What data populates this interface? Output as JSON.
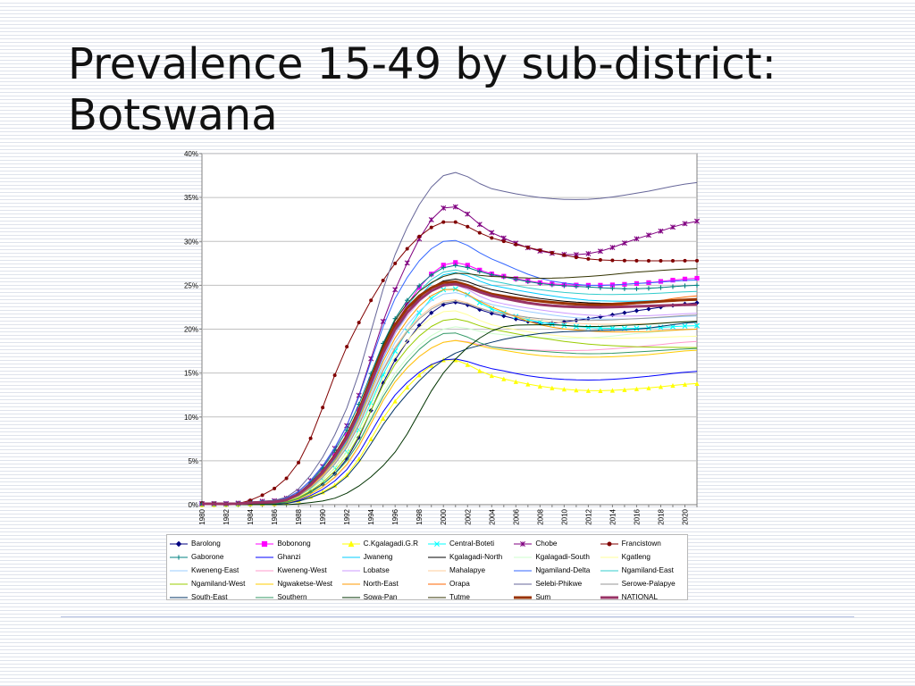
{
  "slide": {
    "title_line1": "Prevalence 15-49 by sub-district:",
    "title_line2": "Botswana"
  },
  "chart_data": {
    "type": "line",
    "ylim": [
      0,
      0.4
    ],
    "y_ticks": [
      "0%",
      "5%",
      "10%",
      "15%",
      "20%",
      "25%",
      "30%",
      "35%",
      "40%"
    ],
    "x_tick_labels": [
      "1980",
      "1982",
      "1984",
      "1986",
      "1988",
      "1990",
      "1992",
      "1994",
      "1996",
      "1998",
      "2000",
      "2002",
      "2004",
      "2006",
      "2008",
      "2010",
      "2012",
      "2014",
      "2016",
      "2018",
      "2020"
    ],
    "x_range": [
      1980,
      2021
    ],
    "grid": "y-major",
    "legend_position": "bottom",
    "keyframe_years": [
      1980,
      1984,
      1988,
      1992,
      1996,
      2000,
      2004,
      2008,
      2012,
      2016,
      2021
    ],
    "series": [
      {
        "name": "Barolong",
        "color": "#000080",
        "marker": "diamond",
        "width": 1,
        "values": [
          0.001,
          0.002,
          0.008,
          0.052,
          0.165,
          0.228,
          0.218,
          0.207,
          0.212,
          0.221,
          0.23
        ]
      },
      {
        "name": "Bobonong",
        "color": "#ff00ff",
        "marker": "square",
        "width": 1,
        "values": [
          0.001,
          0.002,
          0.012,
          0.08,
          0.205,
          0.273,
          0.263,
          0.253,
          0.25,
          0.252,
          0.258
        ]
      },
      {
        "name": "C.Kgalagadi.G.R",
        "color": "#ffff00",
        "marker": "triangle",
        "width": 1,
        "values": [
          0.0,
          0.001,
          0.005,
          0.034,
          0.118,
          0.165,
          0.147,
          0.135,
          0.13,
          0.132,
          0.138
        ]
      },
      {
        "name": "Central-Boteti",
        "color": "#00ffff",
        "marker": "x",
        "width": 1,
        "values": [
          0.001,
          0.002,
          0.01,
          0.06,
          0.175,
          0.245,
          0.223,
          0.208,
          0.202,
          0.201,
          0.204
        ]
      },
      {
        "name": "Chobe",
        "color": "#800080",
        "marker": "star",
        "width": 1,
        "values": [
          0.001,
          0.003,
          0.015,
          0.09,
          0.245,
          0.338,
          0.31,
          0.289,
          0.286,
          0.303,
          0.323
        ]
      },
      {
        "name": "Francistown",
        "color": "#800000",
        "marker": "circle",
        "width": 1,
        "values": [
          0.002,
          0.005,
          0.048,
          0.18,
          0.275,
          0.322,
          0.304,
          0.29,
          0.28,
          0.278,
          0.278
        ]
      },
      {
        "name": "Gaborone",
        "color": "#008080",
        "marker": "plus",
        "width": 1,
        "values": [
          0.001,
          0.002,
          0.013,
          0.085,
          0.212,
          0.27,
          0.262,
          0.252,
          0.248,
          0.246,
          0.25
        ]
      },
      {
        "name": "Ghanzi",
        "color": "#0000ff",
        "marker": "none",
        "width": 1,
        "values": [
          0.0,
          0.001,
          0.005,
          0.04,
          0.125,
          0.165,
          0.155,
          0.145,
          0.142,
          0.145,
          0.152
        ]
      },
      {
        "name": "Jwaneng",
        "color": "#00ccff",
        "marker": "none",
        "width": 1,
        "values": [
          0.001,
          0.002,
          0.011,
          0.072,
          0.195,
          0.262,
          0.25,
          0.24,
          0.233,
          0.232,
          0.234
        ]
      },
      {
        "name": "Kgalagadi-North",
        "color": "#000000",
        "marker": "none",
        "width": 1,
        "values": [
          0.001,
          0.002,
          0.012,
          0.075,
          0.2,
          0.255,
          0.245,
          0.235,
          0.23,
          0.23,
          0.233
        ]
      },
      {
        "name": "Kgalagadi-South",
        "color": "#ccffcc",
        "marker": "none",
        "width": 1,
        "values": [
          0.0,
          0.001,
          0.007,
          0.05,
          0.15,
          0.2,
          0.195,
          0.19,
          0.19,
          0.195,
          0.2
        ]
      },
      {
        "name": "Kgatleng",
        "color": "#ffff99",
        "marker": "none",
        "width": 1,
        "values": [
          0.001,
          0.002,
          0.009,
          0.06,
          0.168,
          0.22,
          0.205,
          0.195,
          0.19,
          0.19,
          0.192
        ]
      },
      {
        "name": "Kweneng-East",
        "color": "#99ccff",
        "marker": "none",
        "width": 1,
        "values": [
          0.001,
          0.002,
          0.01,
          0.068,
          0.185,
          0.24,
          0.228,
          0.218,
          0.212,
          0.212,
          0.215
        ]
      },
      {
        "name": "Kweneng-West",
        "color": "#ff99cc",
        "marker": "none",
        "width": 1,
        "values": [
          0.0,
          0.001,
          0.006,
          0.045,
          0.14,
          0.185,
          0.18,
          0.176,
          0.176,
          0.18,
          0.186
        ]
      },
      {
        "name": "Lobatse",
        "color": "#cc99ff",
        "marker": "none",
        "width": 1,
        "values": [
          0.001,
          0.002,
          0.011,
          0.074,
          0.195,
          0.25,
          0.232,
          0.222,
          0.216,
          0.215,
          0.218
        ]
      },
      {
        "name": "Mahalapye",
        "color": "#ffcc99",
        "marker": "none",
        "width": 1,
        "values": [
          0.001,
          0.002,
          0.01,
          0.066,
          0.18,
          0.232,
          0.22,
          0.21,
          0.206,
          0.206,
          0.209
        ]
      },
      {
        "name": "Ngamiland-Delta",
        "color": "#3366ff",
        "marker": "none",
        "width": 1,
        "values": [
          0.001,
          0.003,
          0.015,
          0.09,
          0.235,
          0.3,
          0.28,
          0.258,
          0.25,
          0.252,
          0.256
        ]
      },
      {
        "name": "Ngamiland-East",
        "color": "#33cccc",
        "marker": "none",
        "width": 1,
        "values": [
          0.001,
          0.002,
          0.012,
          0.078,
          0.205,
          0.265,
          0.255,
          0.245,
          0.24,
          0.24,
          0.243
        ]
      },
      {
        "name": "Ngamiland-West",
        "color": "#99cc00",
        "marker": "none",
        "width": 1,
        "values": [
          0.0,
          0.001,
          0.008,
          0.055,
          0.16,
          0.21,
          0.2,
          0.19,
          0.183,
          0.18,
          0.179
        ]
      },
      {
        "name": "Ngwaketse-West",
        "color": "#ffcc00",
        "marker": "none",
        "width": 1,
        "values": [
          0.0,
          0.001,
          0.006,
          0.046,
          0.14,
          0.185,
          0.178,
          0.17,
          0.168,
          0.17,
          0.176
        ]
      },
      {
        "name": "North-East",
        "color": "#ff9900",
        "marker": "none",
        "width": 1,
        "values": [
          0.001,
          0.002,
          0.011,
          0.07,
          0.19,
          0.245,
          0.225,
          0.205,
          0.198,
          0.197,
          0.2
        ]
      },
      {
        "name": "Orapa",
        "color": "#ff6600",
        "marker": "none",
        "width": 1,
        "values": [
          0.001,
          0.002,
          0.011,
          0.075,
          0.198,
          0.25,
          0.238,
          0.228,
          0.226,
          0.229,
          0.238
        ]
      },
      {
        "name": "Selebi-Phikwe",
        "color": "#666699",
        "marker": "none",
        "width": 1,
        "values": [
          0.001,
          0.003,
          0.018,
          0.11,
          0.285,
          0.375,
          0.36,
          0.35,
          0.348,
          0.355,
          0.367
        ]
      },
      {
        "name": "Serowe-Palapye",
        "color": "#969696",
        "marker": "none",
        "width": 1,
        "values": [
          0.001,
          0.002,
          0.01,
          0.065,
          0.178,
          0.23,
          0.22,
          0.212,
          0.21,
          0.212,
          0.216
        ]
      },
      {
        "name": "South-East",
        "color": "#003366",
        "marker": "none",
        "width": 1,
        "values": [
          0.0,
          0.001,
          0.004,
          0.032,
          0.11,
          0.165,
          0.185,
          0.195,
          0.198,
          0.2,
          0.208
        ]
      },
      {
        "name": "Southern",
        "color": "#339966",
        "marker": "none",
        "width": 1,
        "values": [
          0.0,
          0.001,
          0.007,
          0.05,
          0.145,
          0.195,
          0.18,
          0.175,
          0.172,
          0.174,
          0.178
        ]
      },
      {
        "name": "Sowa-Pan",
        "color": "#003300",
        "marker": "none",
        "width": 1,
        "values": [
          0.0,
          0.0,
          0.001,
          0.013,
          0.06,
          0.15,
          0.198,
          0.205,
          0.203,
          0.205,
          0.209
        ]
      },
      {
        "name": "Tutme",
        "color": "#333300",
        "marker": "none",
        "width": 1,
        "values": [
          0.001,
          0.002,
          0.012,
          0.08,
          0.21,
          0.26,
          0.26,
          0.258,
          0.26,
          0.265,
          0.269
        ]
      },
      {
        "name": "Sum",
        "color": "#993300",
        "marker": "none",
        "width": 3,
        "values": [
          0.001,
          0.002,
          0.012,
          0.078,
          0.205,
          0.253,
          0.24,
          0.232,
          0.228,
          0.23,
          0.234
        ]
      },
      {
        "name": "NATIONAL",
        "color": "#993366",
        "marker": "none",
        "width": 3,
        "values": [
          0.001,
          0.002,
          0.012,
          0.076,
          0.2,
          0.25,
          0.238,
          0.228,
          0.225,
          0.226,
          0.228
        ]
      }
    ]
  }
}
